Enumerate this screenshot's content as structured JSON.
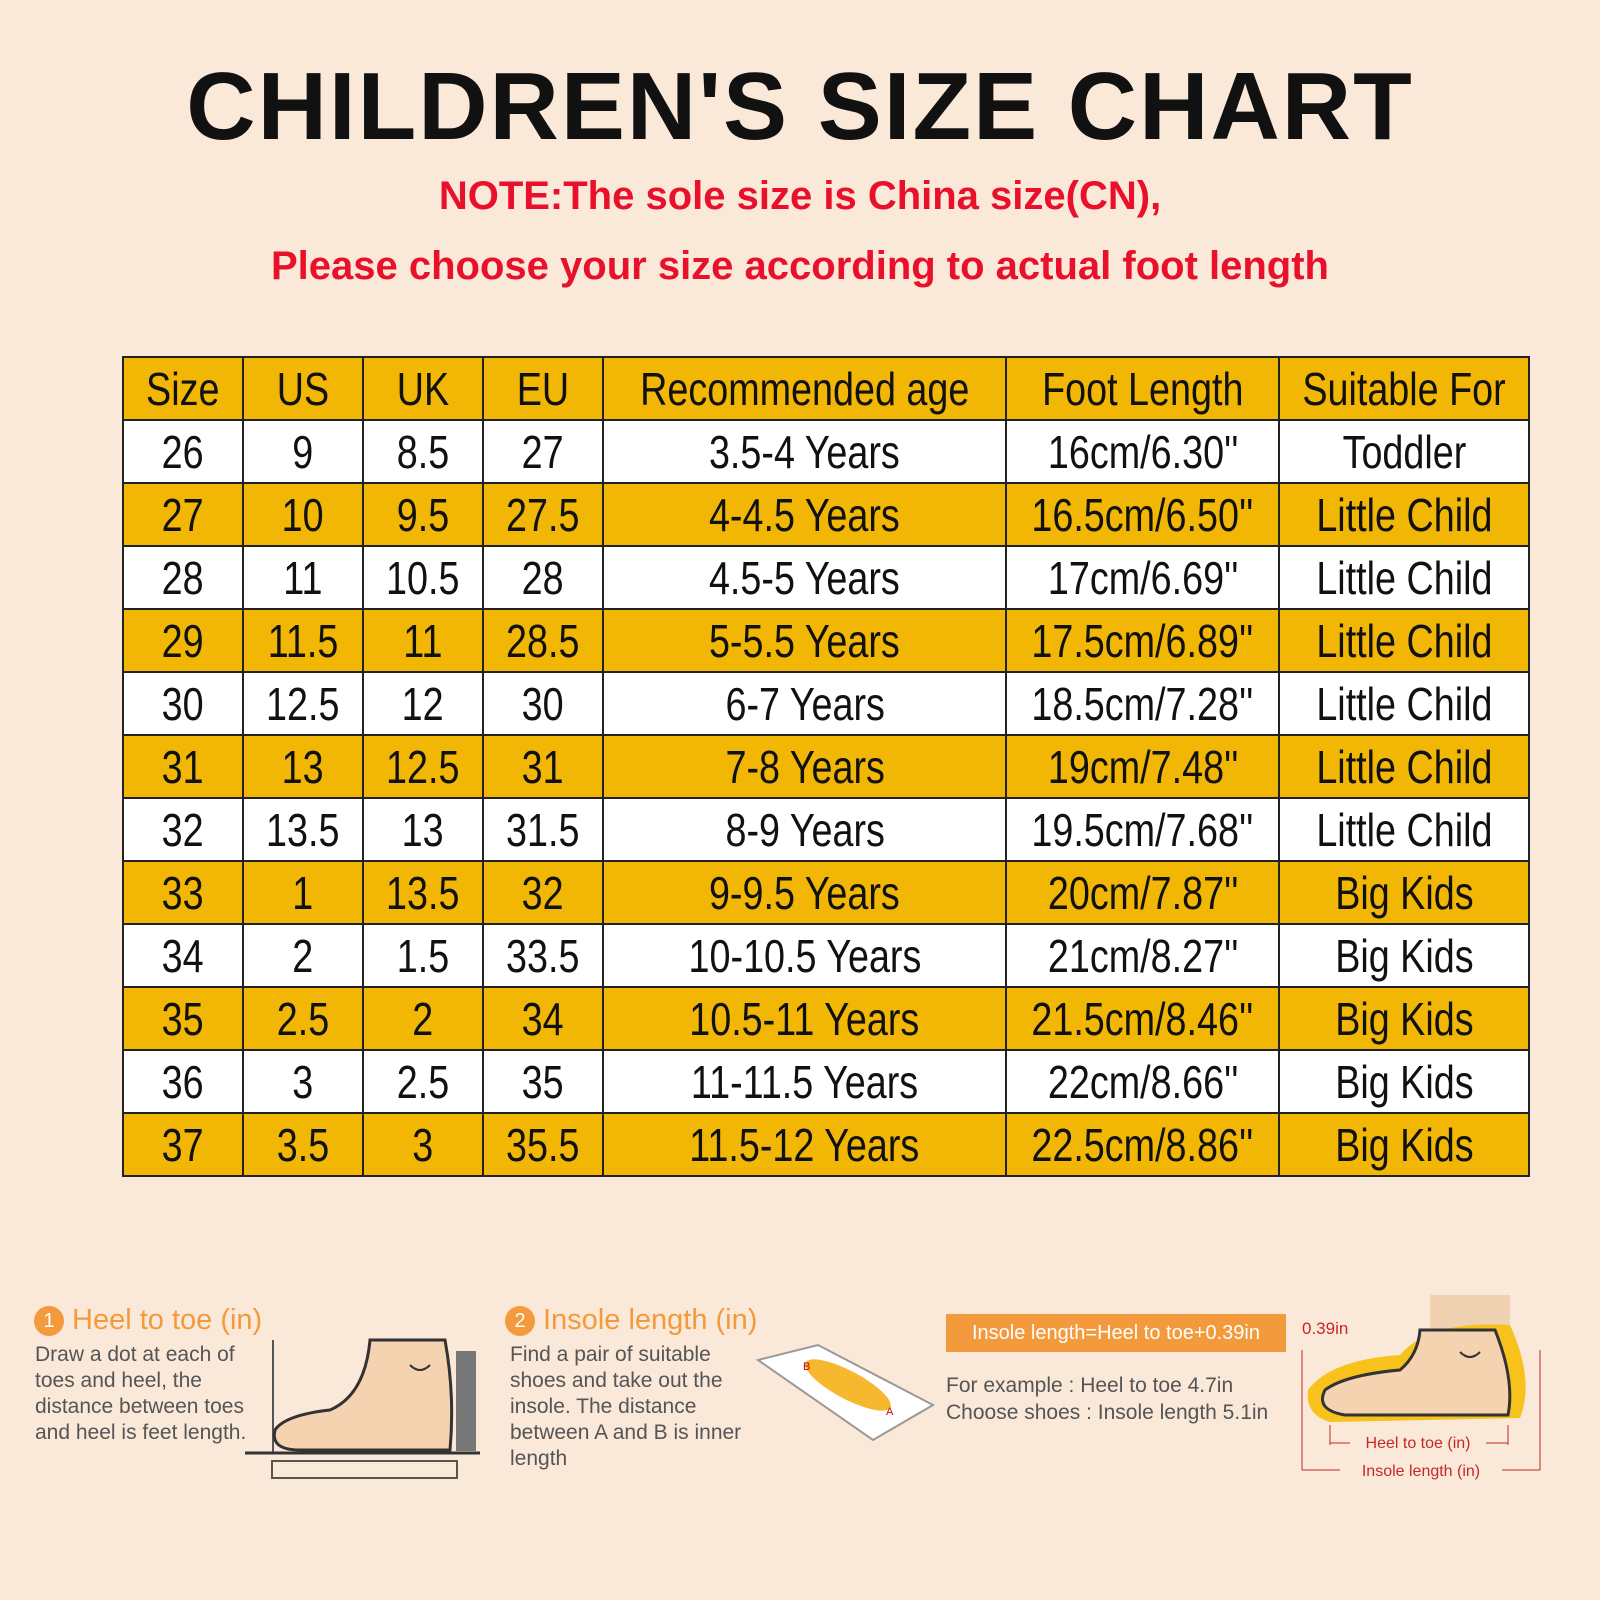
{
  "header": {
    "title": "CHILDREN'S SIZE CHART",
    "note_lines": [
      "NOTE:The sole size is China size(CN),",
      "Please choose your size according to actual foot length"
    ]
  },
  "table": {
    "columns": [
      "Size",
      "US",
      "UK",
      "EU",
      "Recommended age",
      "Foot Length",
      "Suitable For"
    ],
    "rows": [
      [
        "26",
        "9",
        "8.5",
        "27",
        "3.5-4 Years",
        "16cm/6.30''",
        "Toddler"
      ],
      [
        "27",
        "10",
        "9.5",
        "27.5",
        "4-4.5 Years",
        "16.5cm/6.50''",
        "Little Child"
      ],
      [
        "28",
        "11",
        "10.5",
        "28",
        "4.5-5 Years",
        "17cm/6.69''",
        "Little Child"
      ],
      [
        "29",
        "11.5",
        "11",
        "28.5",
        "5-5.5 Years",
        "17.5cm/6.89''",
        "Little Child"
      ],
      [
        "30",
        "12.5",
        "12",
        "30",
        "6-7 Years",
        "18.5cm/7.28''",
        "Little Child"
      ],
      [
        "31",
        "13",
        "12.5",
        "31",
        "7-8 Years",
        "19cm/7.48''",
        "Little Child"
      ],
      [
        "32",
        "13.5",
        "13",
        "31.5",
        "8-9 Years",
        "19.5cm/7.68''",
        "Little Child"
      ],
      [
        "33",
        "1",
        "13.5",
        "32",
        "9-9.5 Years",
        "20cm/7.87''",
        "Big Kids"
      ],
      [
        "34",
        "2",
        "1.5",
        "33.5",
        "10-10.5 Years",
        "21cm/8.27''",
        "Big Kids"
      ],
      [
        "35",
        "2.5",
        "2",
        "34",
        "10.5-11 Years",
        "21.5cm/8.46''",
        "Big Kids"
      ],
      [
        "36",
        "3",
        "2.5",
        "35",
        "11-11.5 Years",
        "22cm/8.66''",
        "Big Kids"
      ],
      [
        "37",
        "3.5",
        "3",
        "35.5",
        "11.5-12 Years",
        "22.5cm/8.86''",
        "Big Kids"
      ]
    ]
  },
  "guide": {
    "steps": [
      {
        "number": "1",
        "heading": "Heel to toe (in)",
        "text": "Draw a dot at each of toes and heel, the distance between toes and heel is feet length."
      },
      {
        "number": "2",
        "heading": "Insole length (in)",
        "text": "Find a pair of suitable shoes and take out the insole. The distance between A and B is inner length"
      }
    ],
    "formula": "Insole length=Heel to toe+0.39in",
    "example": [
      "For example : Heel to toe  4.7in",
      "Choose shoes : Insole length 5.1in"
    ],
    "diagram_labels": {
      "point_b": "B",
      "point_a": "A",
      "extra": "0.39in",
      "heel_to_toe": "Heel to toe (in)",
      "insole_length": "Insole length (in)"
    }
  }
}
